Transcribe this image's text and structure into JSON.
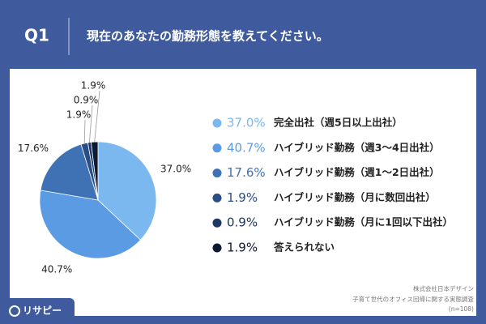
{
  "question": "Q1",
  "brand": "リサピー",
  "source": [
    "株式会社日本デザイン",
    "子育て世代のオフィス回帰に関する実態調査",
    "(n=108)"
  ],
  "chart_data": {
    "type": "pie",
    "title": "現在のあなたの勤務形態を教えてください。",
    "categories": [
      "完全出社（週5日以上出社）",
      "ハイブリッド勤務（週3〜4日出社）",
      "ハイブリッド勤務（週1〜2日出社）",
      "ハイブリッド勤務（月に数回出社）",
      "ハイブリッド勤務（月に1回以下出社）",
      "答えられない"
    ],
    "values": [
      37.0,
      40.7,
      17.6,
      1.9,
      0.9,
      1.9
    ],
    "value_labels": [
      "37.0%",
      "40.7%",
      "17.6%",
      "1.9%",
      "0.9%",
      "1.9%"
    ],
    "colors": [
      "#7ab8ef",
      "#5a9be3",
      "#3e72b5",
      "#2b4d86",
      "#1d3866",
      "#0d1a33"
    ]
  }
}
